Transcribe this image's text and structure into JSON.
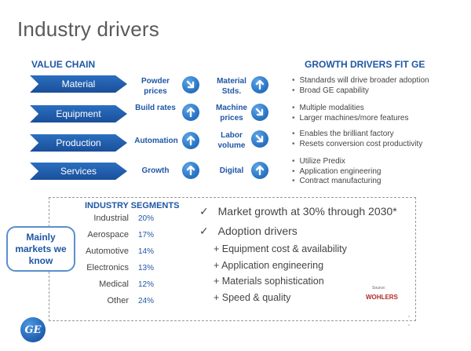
{
  "title": "Industry drivers",
  "value_chain": {
    "heading": "VALUE CHAIN",
    "rows": [
      {
        "stage": "Material",
        "driver1": "Powder prices",
        "icon1": "arrow-down-right-icon",
        "driver2": "Material Stds.",
        "icon2": "arrow-up-icon"
      },
      {
        "stage": "Equipment",
        "driver1": "Build rates",
        "icon1": "arrow-up-icon",
        "driver2": "Machine prices",
        "icon2": "arrow-down-right-icon"
      },
      {
        "stage": "Production",
        "driver1": "Automation",
        "icon1": "arrow-up-icon",
        "driver2": "Labor volume",
        "icon2": "arrow-down-right-icon"
      },
      {
        "stage": "Services",
        "driver1": "Growth",
        "icon1": "arrow-up-icon",
        "driver2": "Digital",
        "icon2": "arrow-up-icon"
      }
    ]
  },
  "growth_drivers": {
    "heading": "GROWTH DRIVERS FIT GE",
    "groups": [
      [
        "Standards will drive broader adoption",
        "Broad GE capability"
      ],
      [
        "Multiple modalities",
        "Larger machines/more features"
      ],
      [
        "Enables the brilliant factory",
        "Resets conversion cost productivity"
      ],
      [
        "Utilize Predix",
        "Application engineering",
        "Contract manufacturing"
      ]
    ]
  },
  "segments": {
    "heading": "INDUSTRY SEGMENTS",
    "items": [
      {
        "name": "Industrial",
        "value": "20%"
      },
      {
        "name": "Aerospace",
        "value": "17%"
      },
      {
        "name": "Automotive",
        "value": "14%"
      },
      {
        "name": "Electronics",
        "value": "13%"
      },
      {
        "name": "Medical",
        "value": "12%"
      },
      {
        "name": "Other",
        "value": "24%"
      }
    ]
  },
  "market": {
    "check1": "Market growth at 30% through 2030*",
    "check2": "Adoption drivers",
    "plus": [
      "+ Equipment cost & availability",
      "+ Application engineering",
      "+ Materials sophistication",
      "+ Speed & quality"
    ]
  },
  "callout": "Mainly markets we know",
  "source": {
    "label": "Source:",
    "name": "WOHLERS"
  },
  "logo": "GE",
  "colors": {
    "accent": "#1f57a5",
    "chevron": "#1b4f9a",
    "icon": "#2c77c7"
  }
}
